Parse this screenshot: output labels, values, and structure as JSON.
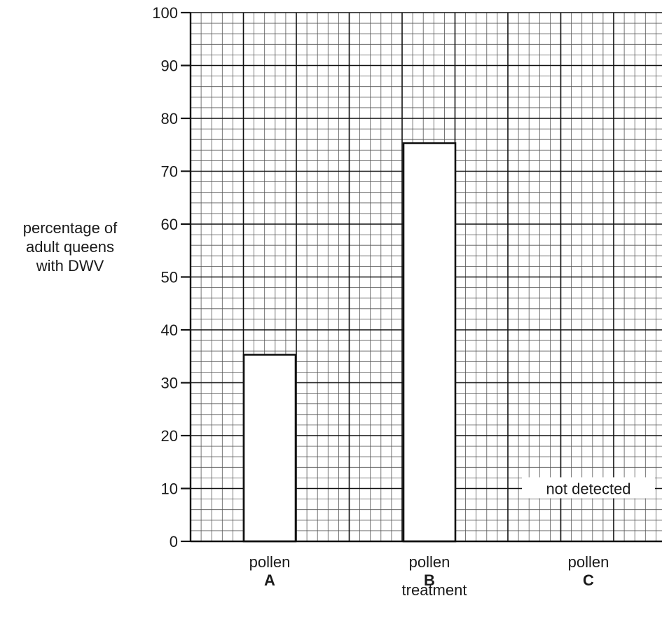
{
  "chart_data": {
    "type": "bar",
    "ylabel": "percentage of\nadult queens\nwith DWV",
    "xlabel": "treatment",
    "ylim": [
      0,
      100
    ],
    "yticks": [
      0,
      10,
      20,
      30,
      40,
      50,
      60,
      70,
      80,
      90,
      100
    ],
    "categories": [
      {
        "label": "pollen",
        "letter": "A"
      },
      {
        "label": "pollen",
        "letter": "B"
      },
      {
        "label": "pollen",
        "letter": "C"
      }
    ],
    "values": [
      35.3,
      75.3,
      0
    ],
    "annotations": [
      {
        "category": "C",
        "text": "not detected"
      }
    ],
    "grid": true
  }
}
